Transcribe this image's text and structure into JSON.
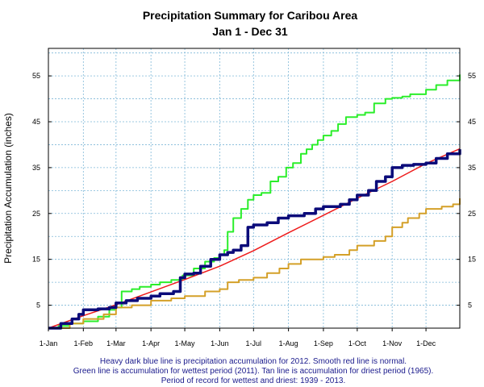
{
  "chart_data": {
    "type": "line",
    "title": "Precipitation Summary for Caribou Area",
    "subtitle": "Jan 1 - Dec 31",
    "ylabel": "Precipitation Accumulation (inches)",
    "xlabel": "",
    "ylim": [
      0,
      61
    ],
    "xlim_day": [
      1,
      366
    ],
    "grid": true,
    "y_ticks": [
      5,
      15,
      25,
      35,
      45,
      55
    ],
    "x_ticks": [
      {
        "label": "1-Jan",
        "day": 1
      },
      {
        "label": "1-Feb",
        "day": 32
      },
      {
        "label": "1-Mar",
        "day": 61
      },
      {
        "label": "1-Apr",
        "day": 92
      },
      {
        "label": "1-May",
        "day": 122
      },
      {
        "label": "1-Jun",
        "day": 153
      },
      {
        "label": "1-Jul",
        "day": 183
      },
      {
        "label": "1-Aug",
        "day": 214
      },
      {
        "label": "1-Sep",
        "day": 245
      },
      {
        "label": "1-Oct",
        "day": 275
      },
      {
        "label": "1-Nov",
        "day": 306
      },
      {
        "label": "1-Dec",
        "day": 336
      }
    ],
    "series": [
      {
        "color": "#2bee2b",
        "width": 2,
        "step": true,
        "points": [
          [
            1,
            0
          ],
          [
            10,
            0.5
          ],
          [
            20,
            1
          ],
          [
            32,
            1.5
          ],
          [
            45,
            2.5
          ],
          [
            55,
            4
          ],
          [
            61,
            4.5
          ],
          [
            66,
            8
          ],
          [
            75,
            8.5
          ],
          [
            82,
            9
          ],
          [
            92,
            9.5
          ],
          [
            100,
            10
          ],
          [
            110,
            10.5
          ],
          [
            120,
            11.5
          ],
          [
            130,
            13
          ],
          [
            140,
            14.5
          ],
          [
            148,
            15.3
          ],
          [
            153,
            16
          ],
          [
            157,
            17
          ],
          [
            160,
            21
          ],
          [
            165,
            24
          ],
          [
            172,
            26
          ],
          [
            178,
            28
          ],
          [
            183,
            29
          ],
          [
            190,
            29.5
          ],
          [
            198,
            32
          ],
          [
            205,
            33
          ],
          [
            212,
            35
          ],
          [
            218,
            36
          ],
          [
            225,
            38
          ],
          [
            230,
            39
          ],
          [
            235,
            40
          ],
          [
            240,
            41
          ],
          [
            245,
            42
          ],
          [
            252,
            43
          ],
          [
            258,
            44.5
          ],
          [
            265,
            46
          ],
          [
            275,
            46.5
          ],
          [
            282,
            47
          ],
          [
            290,
            49
          ],
          [
            300,
            50
          ],
          [
            306,
            50.2
          ],
          [
            315,
            50.5
          ],
          [
            322,
            51
          ],
          [
            336,
            52
          ],
          [
            345,
            53
          ],
          [
            355,
            54
          ],
          [
            366,
            55.3
          ]
        ]
      },
      {
        "color": "#d4a028",
        "width": 2,
        "step": true,
        "points": [
          [
            1,
            0
          ],
          [
            20,
            1
          ],
          [
            32,
            2
          ],
          [
            50,
            3
          ],
          [
            61,
            4.5
          ],
          [
            75,
            5
          ],
          [
            92,
            6
          ],
          [
            110,
            6.5
          ],
          [
            122,
            7
          ],
          [
            140,
            8
          ],
          [
            153,
            8.5
          ],
          [
            160,
            10
          ],
          [
            170,
            10.5
          ],
          [
            183,
            11
          ],
          [
            195,
            12
          ],
          [
            206,
            13
          ],
          [
            214,
            14
          ],
          [
            225,
            15
          ],
          [
            245,
            15.5
          ],
          [
            255,
            16
          ],
          [
            268,
            17
          ],
          [
            275,
            18
          ],
          [
            290,
            19
          ],
          [
            300,
            20
          ],
          [
            306,
            22
          ],
          [
            315,
            23
          ],
          [
            320,
            24
          ],
          [
            330,
            25
          ],
          [
            336,
            26
          ],
          [
            350,
            26.5
          ],
          [
            360,
            27
          ],
          [
            366,
            28.3
          ]
        ]
      },
      {
        "color": "#ee1c1c",
        "width": 1.5,
        "step": false,
        "points": [
          [
            1,
            0
          ],
          [
            32,
            2.7
          ],
          [
            61,
            5.1
          ],
          [
            92,
            7.9
          ],
          [
            122,
            10.6
          ],
          [
            153,
            13.5
          ],
          [
            183,
            16.9
          ],
          [
            214,
            20.8
          ],
          [
            245,
            24.6
          ],
          [
            275,
            28.3
          ],
          [
            306,
            32
          ],
          [
            336,
            35.9
          ],
          [
            366,
            39.1
          ]
        ]
      },
      {
        "color": "#0b0b7a",
        "width": 3.5,
        "step": true,
        "points": [
          [
            1,
            0
          ],
          [
            12,
            1
          ],
          [
            22,
            2
          ],
          [
            28,
            3
          ],
          [
            32,
            4
          ],
          [
            45,
            4.2
          ],
          [
            55,
            4.5
          ],
          [
            61,
            5.5
          ],
          [
            70,
            6
          ],
          [
            80,
            6.5
          ],
          [
            92,
            7
          ],
          [
            100,
            7.5
          ],
          [
            112,
            8
          ],
          [
            118,
            11
          ],
          [
            122,
            11.8
          ],
          [
            130,
            12
          ],
          [
            136,
            13.5
          ],
          [
            145,
            15
          ],
          [
            153,
            16
          ],
          [
            160,
            16.5
          ],
          [
            165,
            17
          ],
          [
            172,
            18
          ],
          [
            178,
            22
          ],
          [
            183,
            22.5
          ],
          [
            195,
            23
          ],
          [
            205,
            24
          ],
          [
            214,
            24.5
          ],
          [
            228,
            25
          ],
          [
            238,
            26
          ],
          [
            245,
            26.5
          ],
          [
            260,
            27
          ],
          [
            268,
            28
          ],
          [
            275,
            29
          ],
          [
            285,
            30
          ],
          [
            292,
            32
          ],
          [
            300,
            33
          ],
          [
            306,
            35
          ],
          [
            315,
            35.5
          ],
          [
            325,
            35.7
          ],
          [
            336,
            36
          ],
          [
            345,
            37
          ],
          [
            355,
            38
          ],
          [
            366,
            39
          ]
        ]
      }
    ]
  },
  "captions": [
    "Heavy dark blue line is precipitation accumulation for 2012. Smooth red line is normal.",
    "Green line is accumulation for wettest period (2011).   Tan line is accumulation for driest period (1965).",
    "Period of record for wettest and driest: 1939 - 2013."
  ]
}
